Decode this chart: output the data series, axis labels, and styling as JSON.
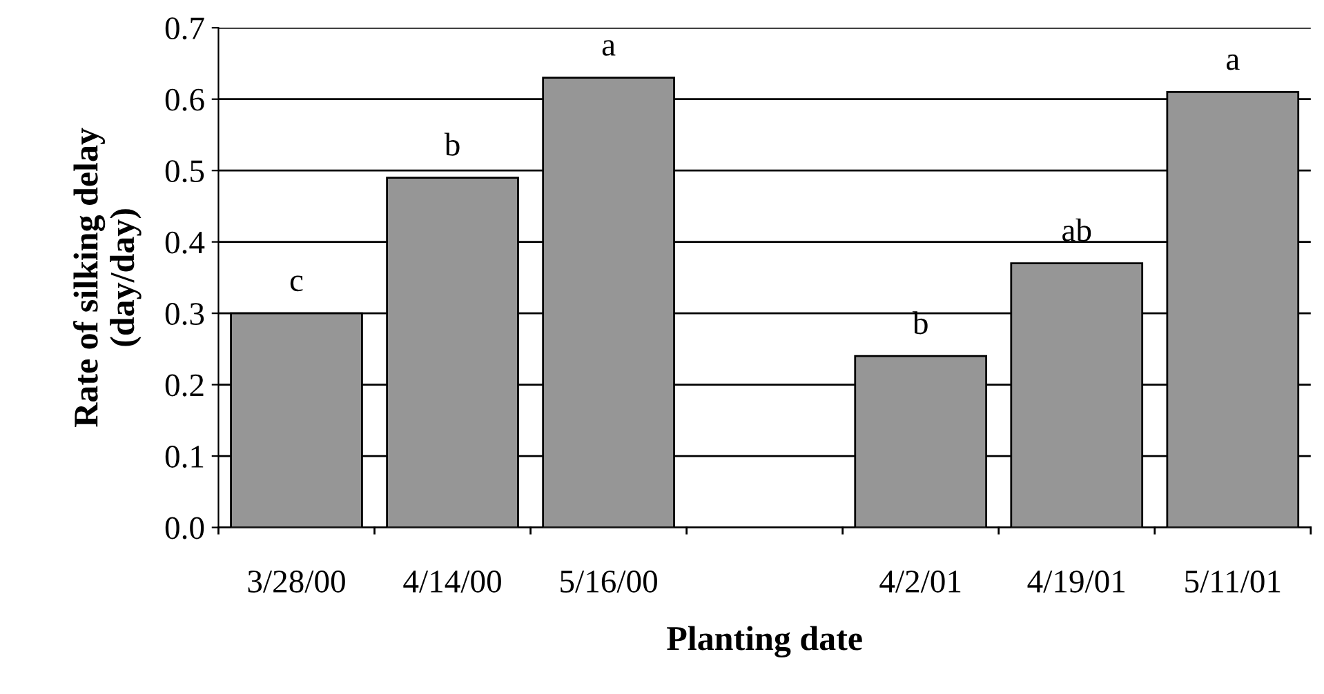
{
  "chart_data": {
    "type": "bar",
    "xlabel": "Planting date",
    "ylabel": "Rate of silking delay\n(day/day)",
    "categories": [
      "3/28/00",
      "4/14/00",
      "5/16/00",
      null,
      "4/2/01",
      "4/19/01",
      "5/11/01"
    ],
    "values": [
      0.3,
      0.49,
      0.63,
      null,
      0.24,
      0.37,
      0.61
    ],
    "value_labels": [
      "c",
      "b",
      "a",
      null,
      "b",
      "ab",
      "a"
    ],
    "color": "#969696",
    "ylim": [
      0,
      0.7
    ],
    "yticks": [
      {
        "value": 0,
        "label": "0.0"
      },
      0.1,
      0.2,
      0.3,
      0.4,
      0.5,
      0.6,
      0.7
    ],
    "grid": "y"
  }
}
